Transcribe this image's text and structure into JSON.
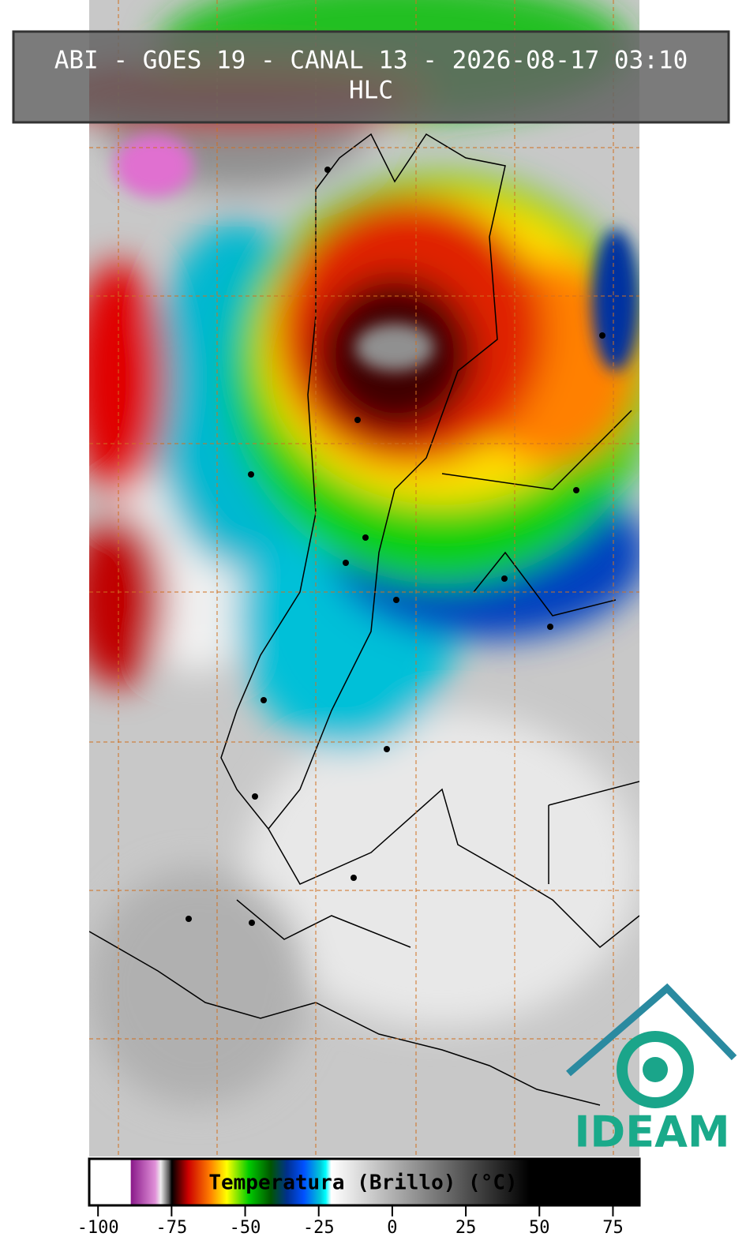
{
  "header": {
    "title": "ABI - GOES 19 - CANAL 13 - 2026-08-17 03:10",
    "subtitle": "HLC"
  },
  "colorbar": {
    "label": "Temperatura (Brillo) (°C)",
    "range": [
      -103,
      84
    ],
    "ticks": [
      -100,
      -75,
      -50,
      -25,
      0,
      25,
      50,
      75
    ]
  },
  "logo": {
    "text": "IDEAM"
  }
}
